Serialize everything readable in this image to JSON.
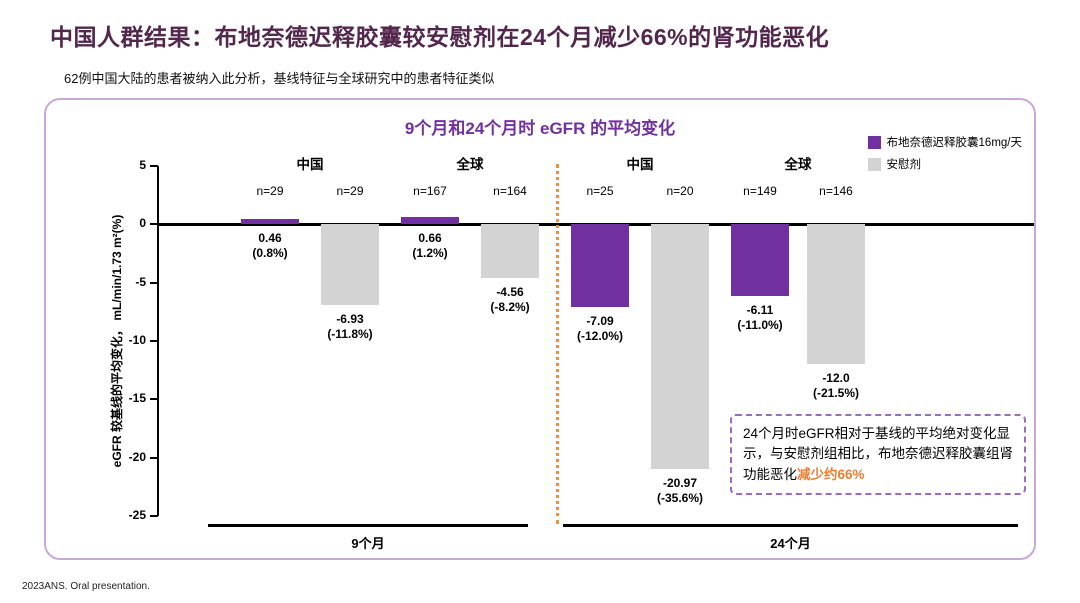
{
  "title": "中国人群结果：布地奈德迟释胶囊较安慰剂在24个月减少66%的肾功能恶化",
  "subtitle": "62例中国大陆的患者被纳入此分析，基线特征与全球研究中的患者特征类似",
  "footer": "2023ANS. Oral presentation.",
  "colors": {
    "treatment": "#7030A0",
    "placebo": "#D3D3D3",
    "highlight_orange": "#ED7D31",
    "divider_orange": "#E8972E",
    "title_plum": "#53274D",
    "panel_border": "#C9A8D8",
    "annotation_border": "#9B6BC3"
  },
  "chart_data": {
    "type": "bar",
    "title": "9个月和24个月时 eGFR 的平均变化",
    "ylabel": "eGFR 较基线的平均变化，  mL/min/1.73 m²(%)",
    "ylim": [
      -25,
      5
    ],
    "yticks": [
      5,
      0,
      -5,
      -10,
      -15,
      -20,
      -25
    ],
    "grid": false,
    "legend_position": "top-right",
    "legend": [
      {
        "series": "treatment",
        "label": "布地奈德迟释胶囊16mg/天",
        "color": "#7030A0"
      },
      {
        "series": "placebo",
        "label": "安慰剂",
        "color": "#D3D3D3"
      }
    ],
    "time_groups": [
      {
        "label": "9个月",
        "regions": [
          {
            "name": "中国",
            "bars": [
              {
                "series": "treatment",
                "n": "n=29",
                "value": 0.46,
                "label": "0.46\n(0.8%)"
              },
              {
                "series": "placebo",
                "n": "n=29",
                "value": -6.93,
                "label": "-6.93\n(-11.8%)"
              }
            ]
          },
          {
            "name": "全球",
            "bars": [
              {
                "series": "treatment",
                "n": "n=167",
                "value": 0.66,
                "label": "0.66\n(1.2%)"
              },
              {
                "series": "placebo",
                "n": "n=164",
                "value": -4.56,
                "label": "-4.56\n(-8.2%)"
              }
            ]
          }
        ]
      },
      {
        "label": "24个月",
        "regions": [
          {
            "name": "中国",
            "bars": [
              {
                "series": "treatment",
                "n": "n=25",
                "value": -7.09,
                "label": "-7.09\n(-12.0%)"
              },
              {
                "series": "placebo",
                "n": "n=20",
                "value": -20.97,
                "label": "-20.97\n(-35.6%)"
              }
            ]
          },
          {
            "name": "全球",
            "bars": [
              {
                "series": "treatment",
                "n": "n=149",
                "value": -6.11,
                "label": "-6.11\n(-11.0%)"
              },
              {
                "series": "placebo",
                "n": "n=146",
                "value": -12.0,
                "label": "-12.0\n(-21.5%)"
              }
            ]
          }
        ]
      }
    ]
  },
  "annotation": {
    "text_before": "24个月时eGFR相对于基线的平均绝对变化显示，与安慰剂组相比，布地奈德迟释胶囊组肾功能恶化",
    "highlight": "减少约66%"
  }
}
